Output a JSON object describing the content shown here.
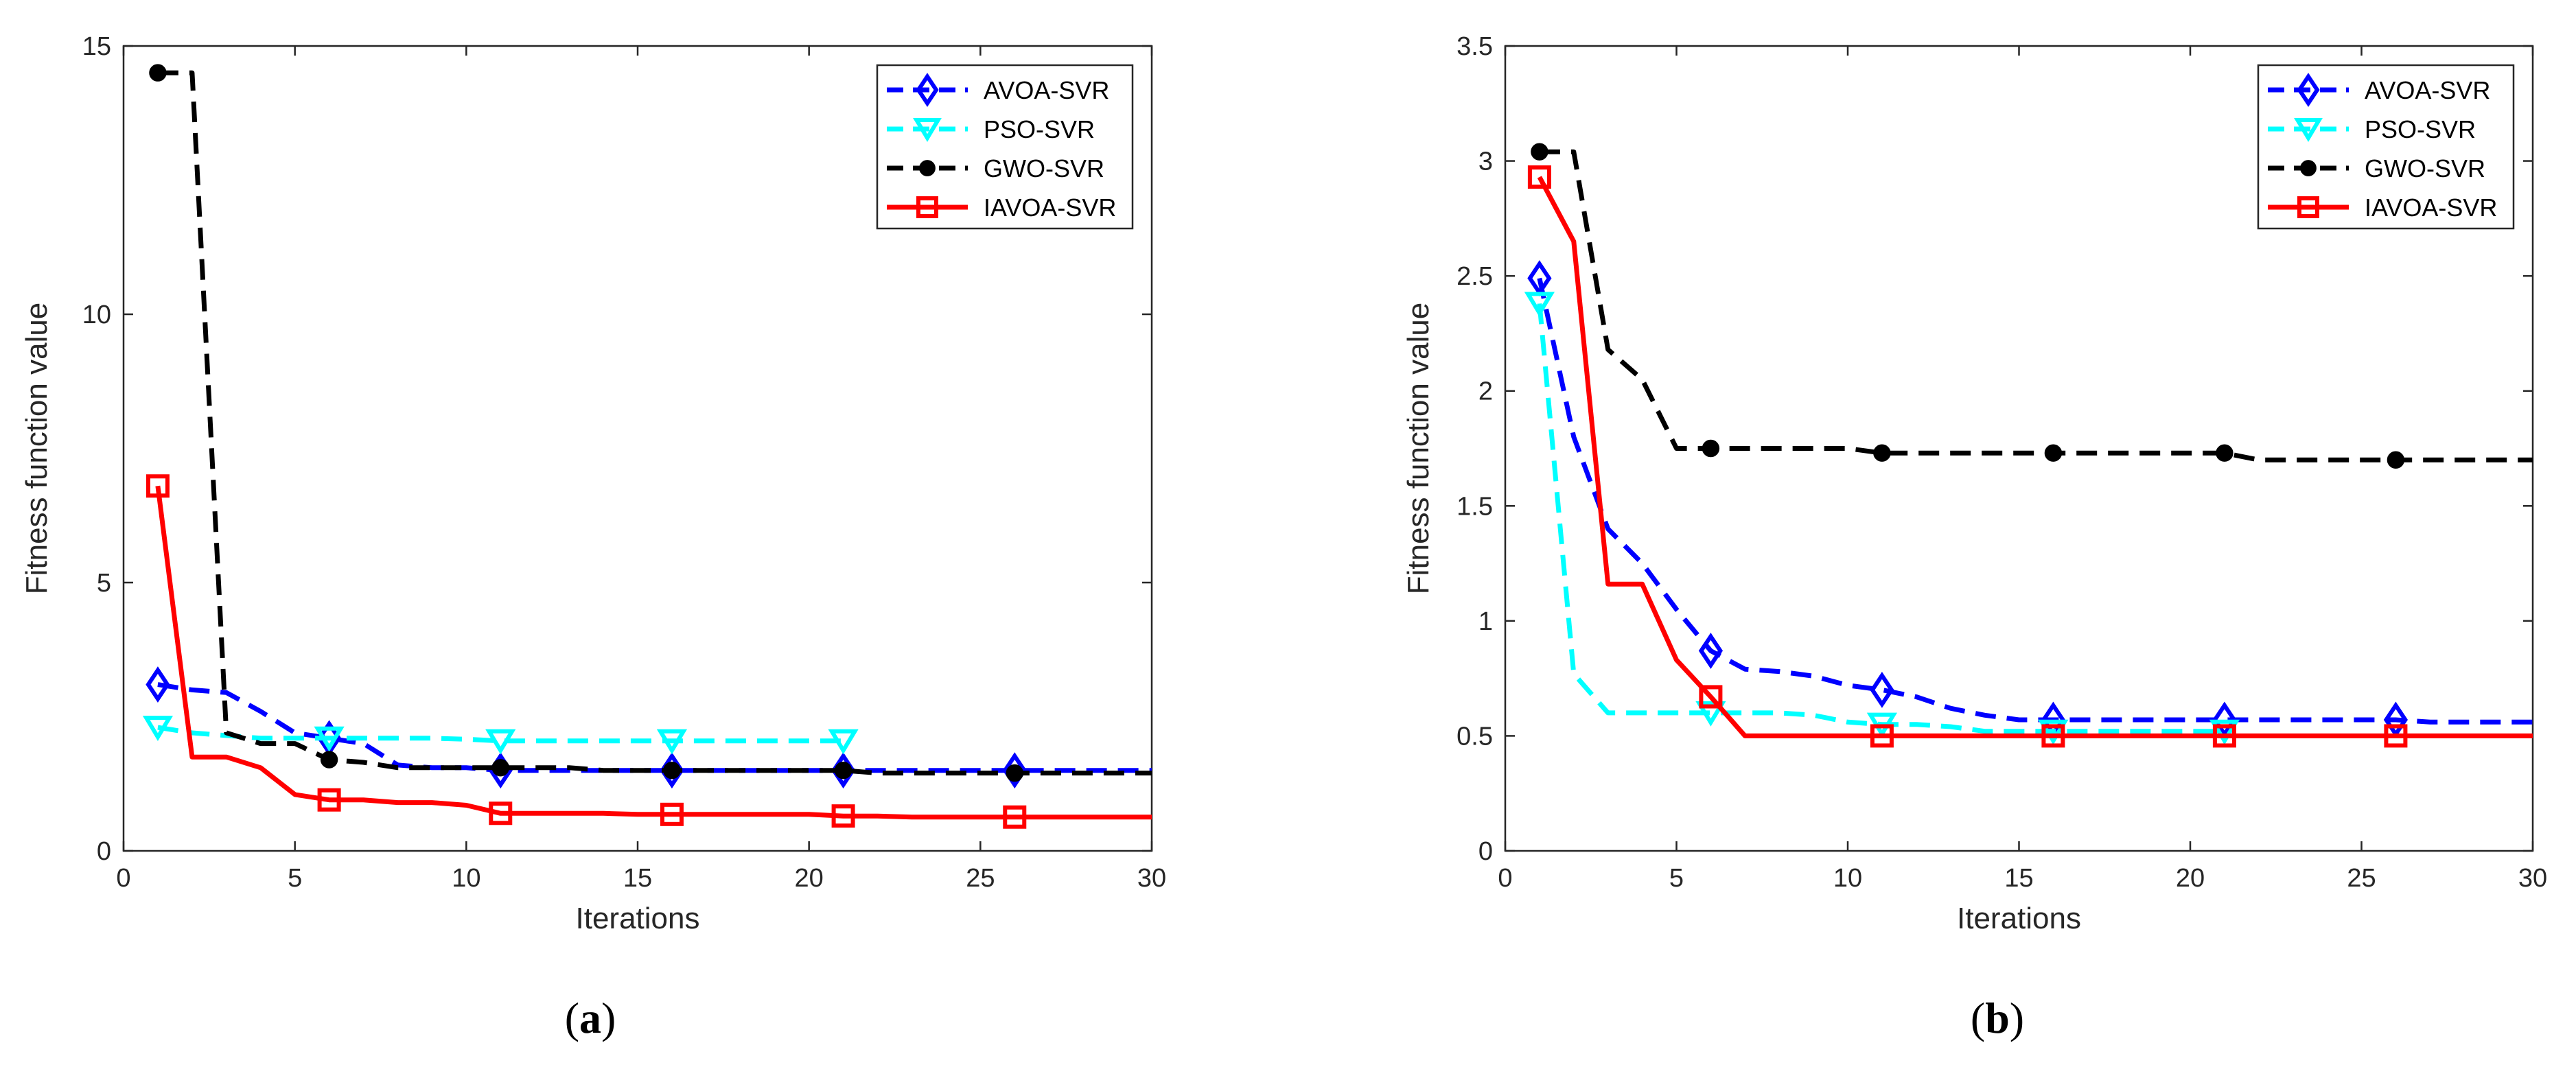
{
  "chart_data": [
    {
      "type": "line",
      "panel_label": "a",
      "title": "",
      "xlabel": "Iterations",
      "ylabel": "Fitness function value",
      "xlim": [
        0,
        30
      ],
      "ylim": [
        0,
        15
      ],
      "xticks": [
        0,
        5,
        10,
        15,
        20,
        25,
        30
      ],
      "yticks": [
        0,
        5,
        10,
        15
      ],
      "grid": false,
      "legend_position": "top-right",
      "series": [
        {
          "name": "AVOA-SVR",
          "color": "#0000ff",
          "line_style": "dashed",
          "marker": "diamond",
          "x": [
            1,
            2,
            3,
            4,
            5,
            6,
            7,
            8,
            9,
            10,
            11,
            12,
            13,
            14,
            15,
            16,
            17,
            18,
            19,
            20,
            21,
            22,
            23,
            24,
            25,
            26,
            27,
            28,
            29,
            30
          ],
          "y": [
            3.1,
            3.0,
            2.95,
            2.6,
            2.2,
            2.1,
            2.0,
            1.6,
            1.55,
            1.55,
            1.5,
            1.5,
            1.5,
            1.5,
            1.5,
            1.5,
            1.5,
            1.5,
            1.5,
            1.5,
            1.5,
            1.5,
            1.5,
            1.5,
            1.5,
            1.5,
            1.5,
            1.5,
            1.5,
            1.5
          ]
        },
        {
          "name": "PSO-SVR",
          "color": "#00ffff",
          "line_style": "dashed",
          "marker": "triangle-down",
          "x": [
            1,
            2,
            3,
            4,
            5,
            6,
            7,
            8,
            9,
            10,
            11,
            12,
            13,
            14,
            15,
            16,
            17,
            18,
            19,
            20,
            21
          ],
          "y": [
            2.3,
            2.2,
            2.15,
            2.1,
            2.1,
            2.1,
            2.1,
            2.1,
            2.1,
            2.08,
            2.05,
            2.05,
            2.05,
            2.05,
            2.05,
            2.05,
            2.05,
            2.05,
            2.05,
            2.05,
            2.05
          ]
        },
        {
          "name": "GWO-SVR",
          "color": "#000000",
          "line_style": "dashed",
          "marker": "circle",
          "x": [
            1,
            2,
            3,
            4,
            5,
            6,
            7,
            8,
            9,
            10,
            11,
            12,
            13,
            14,
            15,
            16,
            17,
            18,
            19,
            20,
            21,
            22,
            23,
            24,
            25,
            26,
            27,
            28,
            29,
            30
          ],
          "y": [
            14.5,
            14.5,
            2.2,
            2.0,
            2.0,
            1.7,
            1.65,
            1.55,
            1.55,
            1.55,
            1.55,
            1.55,
            1.55,
            1.5,
            1.5,
            1.5,
            1.5,
            1.5,
            1.5,
            1.5,
            1.5,
            1.45,
            1.45,
            1.45,
            1.45,
            1.45,
            1.45,
            1.45,
            1.45,
            1.45
          ]
        },
        {
          "name": "IAVOA-SVR",
          "color": "#ff0000",
          "line_style": "solid",
          "marker": "square",
          "x": [
            1,
            2,
            3,
            4,
            5,
            6,
            7,
            8,
            9,
            10,
            11,
            12,
            13,
            14,
            15,
            16,
            17,
            18,
            19,
            20,
            21,
            22,
            23,
            24,
            25,
            26,
            27,
            28,
            29,
            30
          ],
          "y": [
            6.8,
            1.75,
            1.75,
            1.55,
            1.05,
            0.95,
            0.95,
            0.9,
            0.9,
            0.85,
            0.7,
            0.7,
            0.7,
            0.7,
            0.68,
            0.68,
            0.68,
            0.68,
            0.68,
            0.68,
            0.65,
            0.65,
            0.63,
            0.63,
            0.63,
            0.63,
            0.63,
            0.63,
            0.63,
            0.63
          ]
        }
      ]
    },
    {
      "type": "line",
      "panel_label": "b",
      "title": "",
      "xlabel": "Iterations",
      "ylabel": "Fitness function value",
      "xlim": [
        0,
        30
      ],
      "ylim": [
        0,
        3.5
      ],
      "xticks": [
        0,
        5,
        10,
        15,
        20,
        25,
        30
      ],
      "yticks": [
        0,
        0.5,
        1,
        1.5,
        2,
        2.5,
        3,
        3.5
      ],
      "grid": false,
      "legend_position": "top-right",
      "series": [
        {
          "name": "AVOA-SVR",
          "color": "#0000ff",
          "line_style": "dashed",
          "marker": "diamond",
          "x": [
            1,
            2,
            3,
            4,
            5,
            6,
            7,
            8,
            9,
            10,
            11,
            12,
            13,
            14,
            15,
            16,
            17,
            18,
            19,
            20,
            21,
            22,
            23,
            24,
            25,
            26,
            27,
            28,
            29,
            30
          ],
          "y": [
            2.49,
            1.8,
            1.4,
            1.25,
            1.05,
            0.87,
            0.79,
            0.78,
            0.76,
            0.72,
            0.7,
            0.67,
            0.62,
            0.59,
            0.57,
            0.57,
            0.57,
            0.57,
            0.57,
            0.57,
            0.57,
            0.57,
            0.57,
            0.57,
            0.57,
            0.57,
            0.56,
            0.56,
            0.56,
            0.56
          ]
        },
        {
          "name": "PSO-SVR",
          "color": "#00ffff",
          "line_style": "dashed",
          "marker": "triangle-down",
          "x": [
            1,
            2,
            3,
            4,
            5,
            6,
            7,
            8,
            9,
            10,
            11,
            12,
            13,
            14,
            15,
            16,
            17,
            18,
            19,
            20,
            21
          ],
          "y": [
            2.38,
            0.77,
            0.6,
            0.6,
            0.6,
            0.6,
            0.6,
            0.6,
            0.59,
            0.56,
            0.55,
            0.55,
            0.54,
            0.52,
            0.52,
            0.52,
            0.52,
            0.52,
            0.52,
            0.52,
            0.52
          ]
        },
        {
          "name": "GWO-SVR",
          "color": "#000000",
          "line_style": "dashed",
          "marker": "circle",
          "x": [
            1,
            2,
            3,
            4,
            5,
            6,
            7,
            8,
            9,
            10,
            11,
            12,
            13,
            14,
            15,
            16,
            17,
            18,
            19,
            20,
            21,
            22,
            23,
            24,
            25,
            26,
            27,
            28,
            29,
            30
          ],
          "y": [
            3.04,
            3.04,
            2.18,
            2.05,
            1.75,
            1.75,
            1.75,
            1.75,
            1.75,
            1.75,
            1.73,
            1.73,
            1.73,
            1.73,
            1.73,
            1.73,
            1.73,
            1.73,
            1.73,
            1.73,
            1.73,
            1.7,
            1.7,
            1.7,
            1.7,
            1.7,
            1.7,
            1.7,
            1.7,
            1.7
          ]
        },
        {
          "name": "IAVOA-SVR",
          "color": "#ff0000",
          "line_style": "solid",
          "marker": "square",
          "x": [
            1,
            2,
            3,
            4,
            5,
            6,
            7,
            8,
            9,
            10,
            11,
            12,
            13,
            14,
            15,
            16,
            17,
            18,
            19,
            20,
            21,
            22,
            23,
            24,
            25,
            26,
            27,
            28,
            29,
            30
          ],
          "y": [
            2.93,
            2.65,
            1.16,
            1.16,
            0.83,
            0.67,
            0.5,
            0.5,
            0.5,
            0.5,
            0.5,
            0.5,
            0.5,
            0.5,
            0.5,
            0.5,
            0.5,
            0.5,
            0.5,
            0.5,
            0.5,
            0.5,
            0.5,
            0.5,
            0.5,
            0.5,
            0.5,
            0.5,
            0.5,
            0.5
          ]
        }
      ]
    }
  ]
}
